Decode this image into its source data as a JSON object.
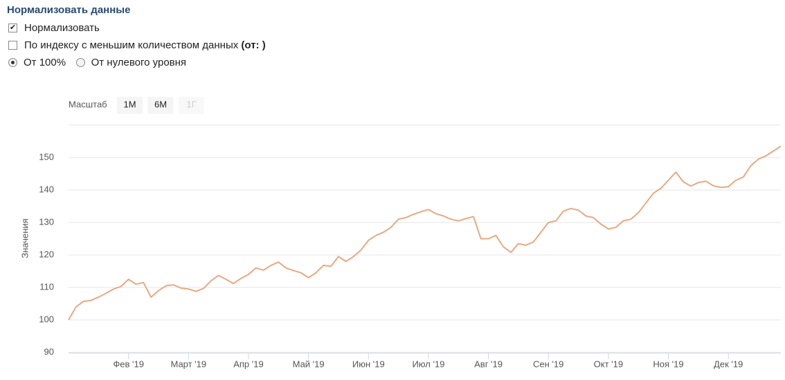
{
  "settings": {
    "title": "Нормализовать данные",
    "options": [
      {
        "label": "Нормализовать",
        "checked": true
      },
      {
        "label": "По индексу с меньшим количеством данных",
        "suffix": "(от: )",
        "checked": false
      }
    ],
    "radios": [
      {
        "label": "От 100%",
        "selected": true
      },
      {
        "label": "От нулевого уровня",
        "selected": false
      }
    ]
  },
  "range_selector": {
    "label": "Масштаб",
    "buttons": [
      {
        "label": "1М",
        "enabled": true
      },
      {
        "label": "6М",
        "enabled": true
      },
      {
        "label": "1Г",
        "enabled": false
      }
    ]
  },
  "chart_data": {
    "type": "line",
    "y_label": "Значения",
    "color": "#e8a882",
    "grid": true,
    "ylim": [
      90,
      160
    ],
    "yticks": [
      90,
      100,
      110,
      120,
      130,
      140,
      150
    ],
    "categories": [
      null,
      null,
      null,
      null,
      null,
      null,
      null,
      null,
      "Фев '19",
      null,
      null,
      null,
      null,
      null,
      null,
      null,
      "Март '19",
      null,
      null,
      null,
      null,
      null,
      null,
      null,
      "Апр '19",
      null,
      null,
      null,
      null,
      null,
      null,
      null,
      "Май '19",
      null,
      null,
      null,
      null,
      null,
      null,
      null,
      "Июн '19",
      null,
      null,
      null,
      null,
      null,
      null,
      null,
      "Июл '19",
      null,
      null,
      null,
      null,
      null,
      null,
      null,
      "Авг '19",
      null,
      null,
      null,
      null,
      null,
      null,
      null,
      "Сен '19",
      null,
      null,
      null,
      null,
      null,
      null,
      null,
      "Окт '19",
      null,
      null,
      null,
      null,
      null,
      null,
      null,
      "Ноя '19",
      null,
      null,
      null,
      null,
      null,
      null,
      null,
      "Дек '19",
      null,
      null,
      null,
      null,
      null,
      null,
      null
    ],
    "values": [
      100,
      104,
      105.7,
      106,
      107,
      108.2,
      109.5,
      110.3,
      112.5,
      111,
      111.5,
      107,
      109,
      110.5,
      110.8,
      109.8,
      109.5,
      108.8,
      109.7,
      112,
      113.7,
      112.5,
      111.2,
      112.8,
      114,
      116,
      115.3,
      116.8,
      117.8,
      116,
      115.2,
      114.5,
      113,
      114.5,
      116.8,
      116.5,
      119.5,
      118,
      119.5,
      121.5,
      124.5,
      126,
      127,
      128.5,
      131,
      131.5,
      132.5,
      133.3,
      134,
      132.7,
      132,
      131,
      130.5,
      131.2,
      131.8,
      125,
      125,
      126,
      122.5,
      120.8,
      123.5,
      123,
      124,
      127,
      130,
      130.5,
      133.5,
      134.3,
      133.8,
      132,
      131.5,
      129.5,
      128,
      128.5,
      130.5,
      131,
      133,
      136,
      139,
      140.5,
      143,
      145.5,
      142.5,
      141.2,
      142.3,
      142.7,
      141.3,
      140.8,
      141,
      143,
      144,
      147.5,
      149.5,
      150.5,
      152,
      153.5
    ]
  }
}
